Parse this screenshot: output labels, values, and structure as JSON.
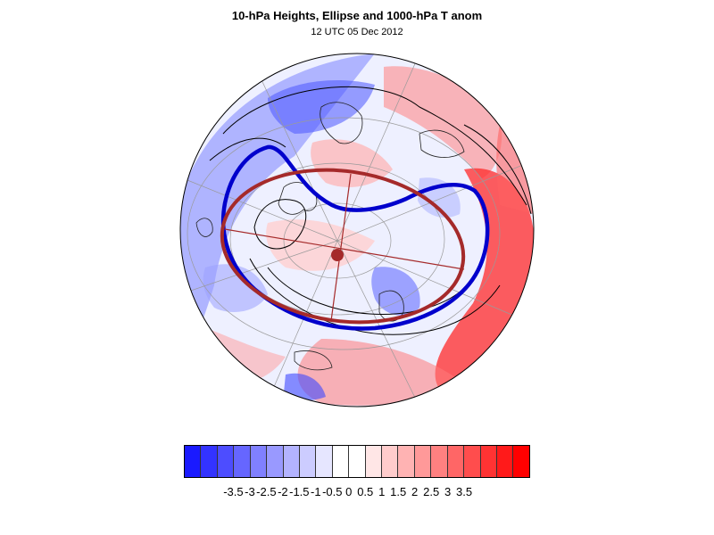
{
  "map": {
    "title": "10-hPa Heights, Ellipse and 1000-hPa T anom",
    "subtitle": "12 UTC 05 Dec 2012",
    "projection": "orthographic",
    "ellipse_color": "#a52a2a",
    "contour_highlight_color": "#0000cc",
    "contour_color": "#000000"
  },
  "colorbar": {
    "colors": [
      "#1a1aff",
      "#3333ff",
      "#4d4dff",
      "#6666ff",
      "#8080ff",
      "#9999ff",
      "#b3b3ff",
      "#ccccff",
      "#e6e6ff",
      "#ffffff",
      "#ffffff",
      "#ffe6e6",
      "#ffcccc",
      "#ffb3b3",
      "#ff9999",
      "#ff8080",
      "#ff6666",
      "#ff4d4d",
      "#ff3333",
      "#ff1a1a",
      "#ff0000"
    ],
    "tick_labels": [
      "-3.5",
      "-3",
      "-2.5",
      "-2",
      "-1.5",
      "-1",
      "-0.5",
      "0",
      "0.5",
      "1",
      "1.5",
      "2",
      "2.5",
      "3",
      "3.5"
    ]
  }
}
